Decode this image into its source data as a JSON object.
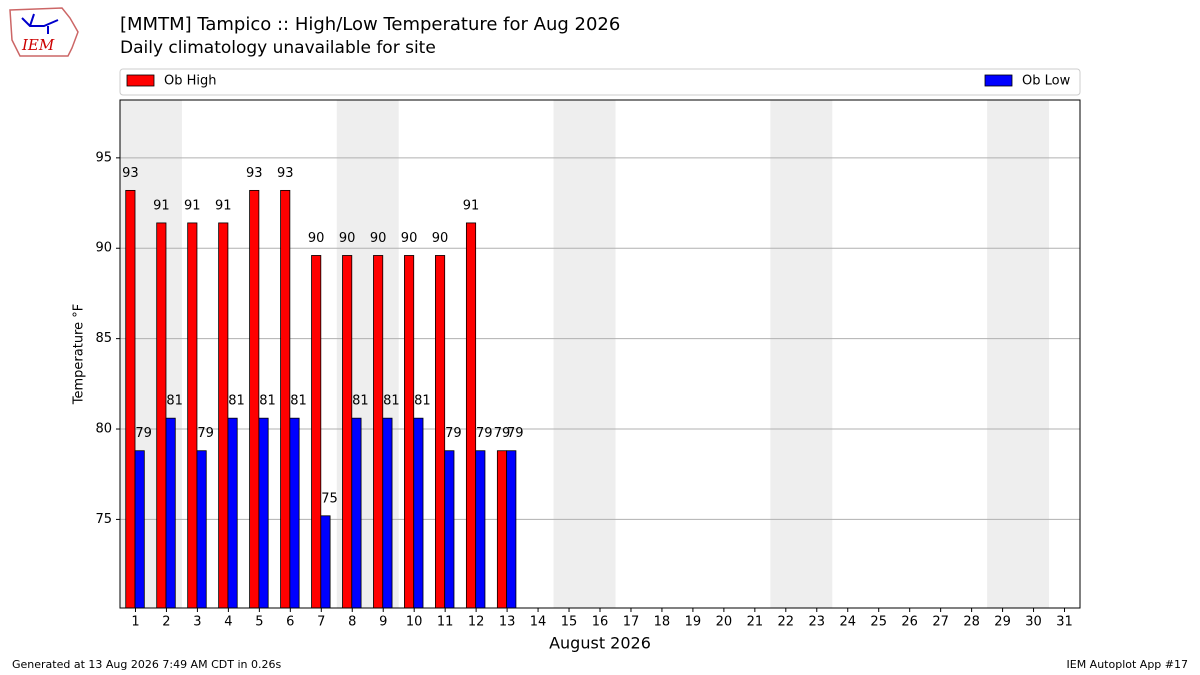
{
  "chart_data": {
    "type": "bar",
    "title": "[MMTM] Tampico :: High/Low Temperature for Aug 2026",
    "subtitle": "Daily climatology unavailable for site",
    "x_label": "August 2026",
    "y_label": "Temperature °F",
    "x": [
      1,
      2,
      3,
      4,
      5,
      6,
      7,
      8,
      9,
      10,
      11,
      12,
      13
    ],
    "series": [
      {
        "name": "Ob High",
        "color": "#ff0000",
        "values": [
          93.2,
          91.4,
          91.4,
          91.4,
          93.2,
          93.2,
          89.6,
          89.6,
          89.6,
          89.6,
          89.6,
          91.4,
          78.8
        ],
        "value_labels": [
          "93",
          "91",
          "91",
          "91",
          "93",
          "93",
          "90",
          "90",
          "90",
          "90",
          "90",
          "91",
          "79"
        ]
      },
      {
        "name": "Ob Low",
        "color": "#0000ff",
        "values": [
          78.8,
          80.6,
          78.8,
          80.6,
          80.6,
          80.6,
          75.2,
          80.6,
          80.6,
          80.6,
          78.8,
          78.8,
          78.8
        ],
        "value_labels": [
          "79",
          "81",
          "79",
          "81",
          "81",
          "81",
          "75",
          "81",
          "81",
          "81",
          "79",
          "79",
          "79"
        ]
      }
    ],
    "xlim": [
      0.5,
      31.5
    ],
    "xticks": [
      1,
      2,
      3,
      4,
      5,
      6,
      7,
      8,
      9,
      10,
      11,
      12,
      13,
      14,
      15,
      16,
      17,
      18,
      19,
      20,
      21,
      22,
      23,
      24,
      25,
      26,
      27,
      28,
      29,
      30,
      31
    ],
    "ylim": [
      70.1,
      98.2
    ],
    "yticks": [
      75,
      80,
      85,
      90,
      95
    ],
    "grid": true,
    "shaded_spans": [
      [
        0.5,
        2.5
      ],
      [
        7.5,
        9.5
      ],
      [
        14.5,
        16.5
      ],
      [
        21.5,
        23.5
      ],
      [
        28.5,
        30.5
      ]
    ]
  },
  "logo": "IEM",
  "footer": {
    "left": "Generated at 13 Aug 2026 7:49 AM CDT in 0.26s",
    "right": "IEM Autoplot App #17"
  }
}
